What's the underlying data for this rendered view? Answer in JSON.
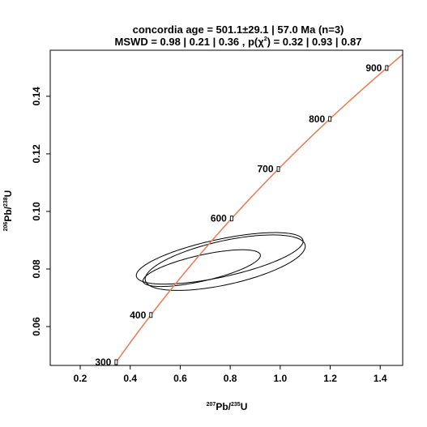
{
  "chart_data": {
    "type": "scatter",
    "title_line1": "concordia age = 501.1±29.1 | 57.0 Ma (n=3)",
    "title_line2_pre": "MSWD = 0.98 | 0.21 | 0.36 , p(",
    "title_line2_chi": "χ",
    "title_line2_exp": "2",
    "title_line2_post": ") = 0.32 | 0.93 | 0.87",
    "xlabel": {
      "sup1": "207",
      "base1": "Pb/",
      "sup2": "235",
      "base2": "U"
    },
    "ylabel": {
      "sup1": "206",
      "base1": "Pb/",
      "sup2": "238",
      "base2": "U"
    },
    "xlim": [
      0.08,
      1.49
    ],
    "ylim": [
      0.0465,
      0.156
    ],
    "xticks": [
      0.2,
      0.4,
      0.6,
      0.8,
      1.0,
      1.2,
      1.4
    ],
    "xtick_labels": [
      "0.2",
      "0.4",
      "0.6",
      "0.8",
      "1.0",
      "1.2",
      "1.4"
    ],
    "yticks": [
      0.06,
      0.08,
      0.1,
      0.12,
      0.14
    ],
    "ytick_labels": [
      "0.06",
      "0.08",
      "0.10",
      "0.12",
      "0.14"
    ],
    "concordia": {
      "color": "#e8805a",
      "age_range_ma": [
        300,
        950
      ],
      "markers": [
        {
          "age": 300,
          "label": "300"
        },
        {
          "age": 400,
          "label": "400"
        },
        {
          "age": 600,
          "label": "600"
        },
        {
          "age": 700,
          "label": "700"
        },
        {
          "age": 800,
          "label": "800"
        },
        {
          "age": 900,
          "label": "900"
        }
      ]
    },
    "ellipses": [
      {
        "cx": 0.758,
        "cy": 0.0837,
        "rx": 0.682,
        "ry": 0.0131,
        "angle": 12.2
      },
      {
        "cx": 0.686,
        "cy": 0.0803,
        "rx": 0.481,
        "ry": 0.009,
        "angle": 12.8
      },
      {
        "cx": 0.78,
        "cy": 0.0822,
        "rx": 0.655,
        "ry": 0.0152,
        "angle": 12.5
      }
    ]
  }
}
